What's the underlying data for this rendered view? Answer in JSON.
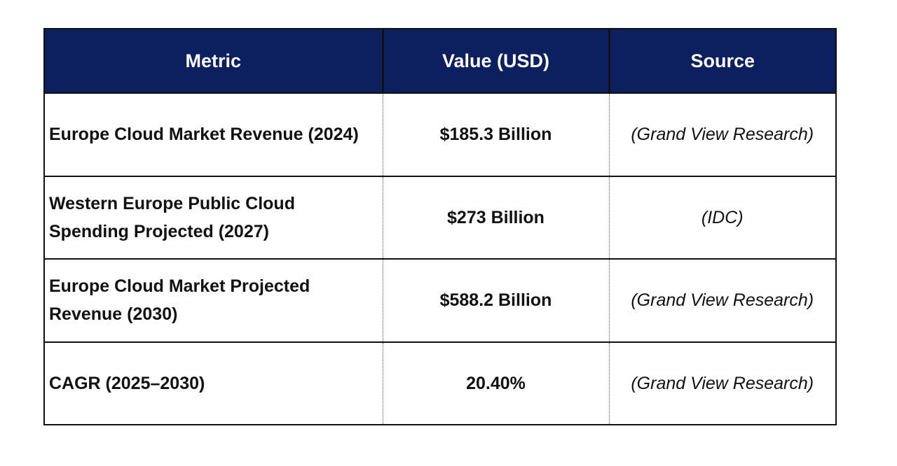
{
  "header": {
    "metric": "Metric",
    "value": "Value (USD)",
    "source": "Source"
  },
  "rows": [
    {
      "metric": "Europe Cloud Market Revenue (2024)",
      "value": "$185.3 Billion",
      "source": "(Grand View Research)"
    },
    {
      "metric": "Western Europe Public Cloud Spending Projected (2027)",
      "value": "$273 Billion",
      "source": "(IDC)"
    },
    {
      "metric": "Europe Cloud Market Projected Revenue (2030)",
      "value": "$588.2 Billion",
      "source": "(Grand View Research)"
    },
    {
      "metric": "CAGR (2025–2030)",
      "value": "20.40%",
      "source": "(Grand View Research)"
    }
  ],
  "colors": {
    "header_bg": "#0c1f5e",
    "header_text": "#ffffff"
  }
}
